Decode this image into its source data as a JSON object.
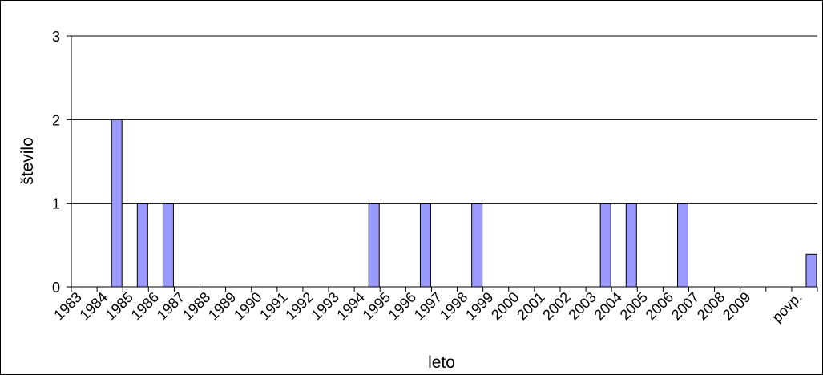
{
  "chart_data": {
    "type": "bar",
    "title": "",
    "xlabel": "leto",
    "ylabel": "število",
    "ylim": [
      0,
      3
    ],
    "yticks": [
      "0",
      "1",
      "2",
      "3"
    ],
    "grid": true,
    "legend": "none",
    "categories": [
      "1983",
      "1984",
      "1985",
      "1986",
      "1987",
      "1988",
      "1989",
      "1990",
      "1991",
      "1992",
      "1993",
      "1994",
      "1995",
      "1996",
      "1997",
      "1998",
      "1999",
      "2000",
      "2001",
      "2002",
      "2003",
      "2004",
      "2005",
      "2006",
      "2007",
      "2008",
      "2009",
      "",
      "povp."
    ],
    "values": [
      0,
      2,
      1,
      1,
      0,
      0,
      0,
      0,
      0,
      0,
      0,
      1,
      0,
      1,
      0,
      1,
      0,
      0,
      0,
      0,
      1,
      1,
      0,
      1,
      0,
      0,
      0,
      0,
      0.39
    ],
    "bar_color": "#9999ff",
    "bar_stroke": "#000000"
  }
}
